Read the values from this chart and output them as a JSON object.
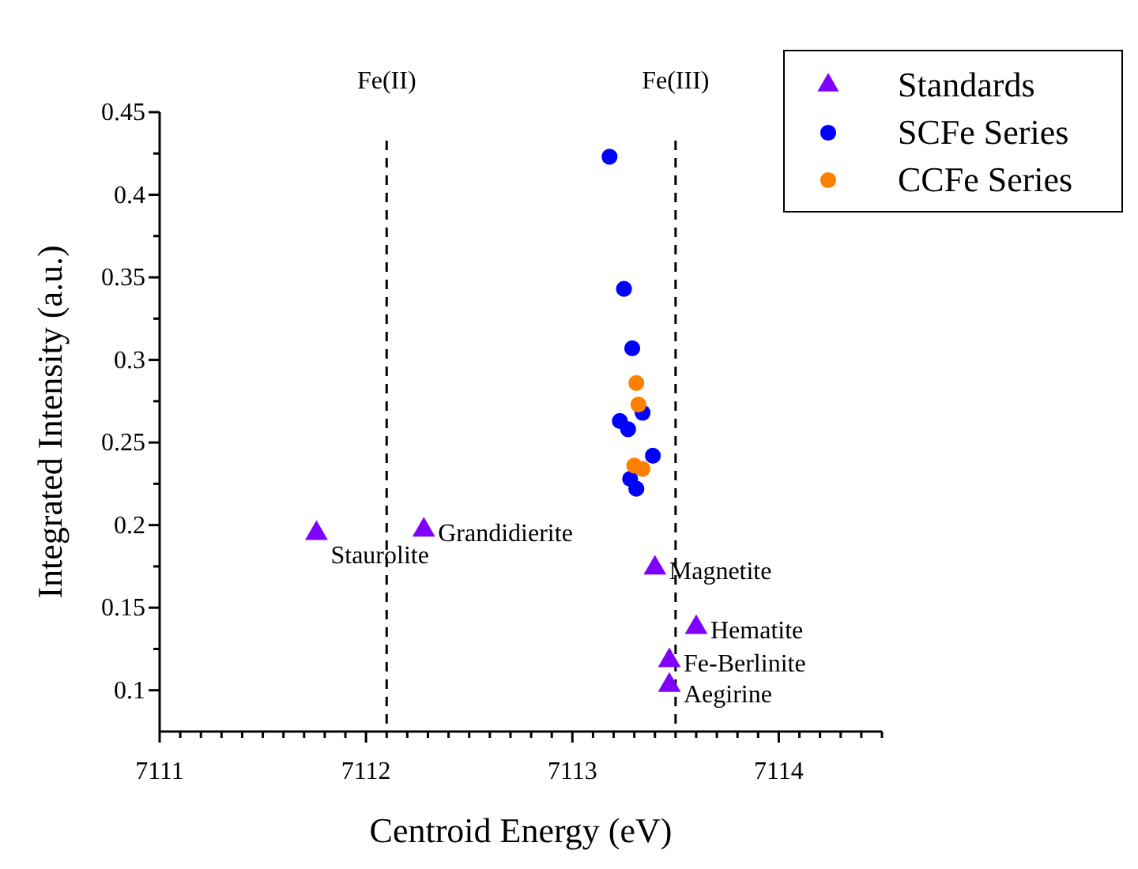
{
  "chart_data": {
    "type": "scatter",
    "xlabel": "Centroid Energy (eV)",
    "ylabel": "Integrated Intensity (a.u.)",
    "xlim": [
      7111,
      7114.5
    ],
    "ylim": [
      0.075,
      0.45
    ],
    "xticks": [
      7111,
      {
        "value": 7111.1,
        "label": null
      },
      {
        "value": 7111.2,
        "label": null
      },
      {
        "value": 7111.3,
        "label": null
      },
      {
        "value": 7111.4,
        "label": null
      },
      {
        "value": 7111.5,
        "label": null
      },
      {
        "value": 7111.6,
        "label": null
      },
      {
        "value": 7111.7,
        "label": null
      },
      {
        "value": 7111.8,
        "label": null
      },
      {
        "value": 7111.9,
        "label": null
      },
      7112,
      {
        "value": 7112.1,
        "label": null
      },
      {
        "value": 7112.2,
        "label": null
      },
      {
        "value": 7112.3,
        "label": null
      },
      {
        "value": 7112.4,
        "label": null
      },
      {
        "value": 7112.5,
        "label": null
      },
      {
        "value": 7112.6,
        "label": null
      },
      {
        "value": 7112.7,
        "label": null
      },
      {
        "value": 7112.8,
        "label": null
      },
      {
        "value": 7112.9,
        "label": null
      },
      7113,
      {
        "value": 7113.1,
        "label": null
      },
      {
        "value": 7113.2,
        "label": null
      },
      {
        "value": 7113.3,
        "label": null
      },
      {
        "value": 7113.4,
        "label": null
      },
      {
        "value": 7113.5,
        "label": null
      },
      {
        "value": 7113.6,
        "label": null
      },
      {
        "value": 7113.7,
        "label": null
      },
      {
        "value": 7113.8,
        "label": null
      },
      {
        "value": 7113.9,
        "label": null
      },
      7114,
      {
        "value": 7114.1,
        "label": null
      },
      {
        "value": 7114.2,
        "label": null
      },
      {
        "value": 7114.3,
        "label": null
      },
      {
        "value": 7114.4,
        "label": null
      },
      {
        "value": 7114.5,
        "label": null
      }
    ],
    "yticks": [
      0.1,
      {
        "value": 0.125,
        "label": null
      },
      0.15,
      {
        "value": 0.175,
        "label": null
      },
      0.2,
      {
        "value": 0.225,
        "label": null
      },
      0.25,
      {
        "value": 0.275,
        "label": null
      },
      0.3,
      {
        "value": 0.325,
        "label": null
      },
      0.35,
      {
        "value": 0.375,
        "label": null
      },
      0.4,
      {
        "value": 0.425,
        "label": null
      },
      0.45
    ],
    "series": [
      {
        "name": "Standards",
        "color": "#8000ff",
        "marker": "triangle",
        "x": [
          7111.76,
          7112.28,
          7113.4,
          7113.6,
          7113.47,
          7113.47
        ],
        "values": [
          0.195,
          0.197,
          0.174,
          0.138,
          0.118,
          0.103
        ]
      },
      {
        "name": "SCFe Series",
        "color": "#0000ff",
        "marker": "circle",
        "x": [
          7113.18,
          7113.25,
          7113.29,
          7113.34,
          7113.23,
          7113.27,
          7113.39,
          7113.28,
          7113.31
        ],
        "values": [
          0.423,
          0.343,
          0.307,
          0.268,
          0.263,
          0.258,
          0.242,
          0.228,
          0.222
        ]
      },
      {
        "name": "CCFe Series",
        "color": "#ff8000",
        "marker": "circle",
        "x": [
          7113.31,
          7113.32,
          7113.3,
          7113.34
        ],
        "values": [
          0.286,
          0.273,
          0.236,
          0.234
        ]
      }
    ],
    "ref_lines": [
      {
        "axis": "x",
        "value": 7112.1,
        "label": "Fe(II)",
        "line_style": "dashed",
        "color": "#000000"
      },
      {
        "axis": "x",
        "value": 7113.5,
        "label": "Fe(III)",
        "line_style": "dashed",
        "color": "#000000"
      }
    ],
    "annotations": [
      {
        "text": "Staurolite",
        "x": 7111.76,
        "y": 0.195
      },
      {
        "text": "Grandidierite",
        "x": 7112.28,
        "y": 0.197
      },
      {
        "text": "Magnetite",
        "x": 7113.4,
        "y": 0.174
      },
      {
        "text": "Hematite",
        "x": 7113.6,
        "y": 0.138
      },
      {
        "text": "Fe-Berlinite",
        "x": 7113.47,
        "y": 0.118
      },
      {
        "text": "Aegirine",
        "x": 7113.47,
        "y": 0.103
      }
    ],
    "grid": false,
    "legend": "top right"
  }
}
